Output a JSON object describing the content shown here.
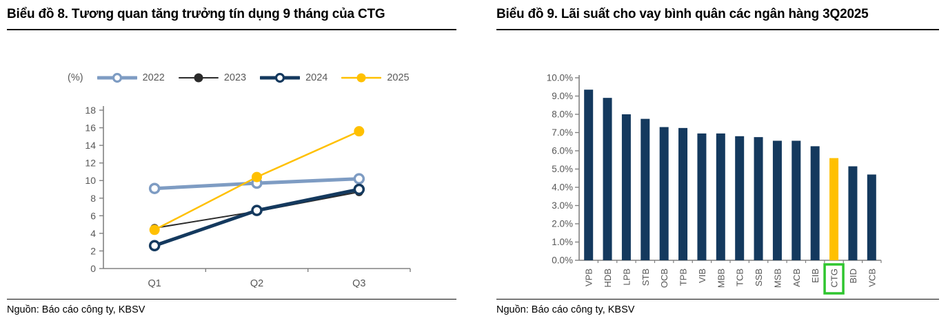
{
  "chart_data": [
    {
      "type": "line",
      "title": "Biểu đồ 8. Tương quan tăng trưởng tín dụng 9 tháng của CTG",
      "unit_label": "(%)",
      "categories": [
        "Q1",
        "Q2",
        "Q3"
      ],
      "series": [
        {
          "name": "2022",
          "values": [
            9.1,
            9.7,
            10.2
          ],
          "color": "#7E9CC3",
          "marker": "open"
        },
        {
          "name": "2023",
          "values": [
            4.6,
            6.5,
            8.7
          ],
          "color": "#2B2B2B",
          "marker": "filled"
        },
        {
          "name": "2024",
          "values": [
            2.6,
            6.6,
            9.0
          ],
          "color": "#14395E",
          "marker": "open"
        },
        {
          "name": "2025",
          "values": [
            4.4,
            10.4,
            15.6
          ],
          "color": "#FFC000",
          "marker": "filled"
        }
      ],
      "ylim": [
        0,
        18
      ],
      "ytick_step": 2,
      "grid": false,
      "legend_position": "top",
      "source": "Nguồn: Báo cáo công ty, KBSV"
    },
    {
      "type": "bar",
      "title": "Biểu đồ 9. Lãi suất cho vay bình quân các ngân hàng 3Q2025",
      "categories": [
        "VPB",
        "HDB",
        "LPB",
        "STB",
        "OCB",
        "TPB",
        "VIB",
        "MBB",
        "TCB",
        "SSB",
        "MSB",
        "ACB",
        "EIB",
        "CTG",
        "BID",
        "VCB"
      ],
      "values": [
        9.35,
        8.9,
        8.0,
        7.75,
        7.3,
        7.25,
        6.95,
        6.95,
        6.8,
        6.75,
        6.55,
        6.55,
        6.25,
        5.6,
        5.15,
        4.7
      ],
      "ylim": [
        0,
        10
      ],
      "ytick_step": 1,
      "ytick_suffix": "%",
      "bar_color": "#14395E",
      "highlight": {
        "category": "CTG",
        "bar_color": "#FFC000",
        "box_color": "#2FC52F"
      },
      "grid": false,
      "source": "Nguồn: Báo cáo công ty, KBSV"
    }
  ],
  "colors": {
    "axis": "#808080",
    "tick_label": "#575757",
    "title": "#000000",
    "rule": "#0d0d0d",
    "background": "#ffffff"
  }
}
